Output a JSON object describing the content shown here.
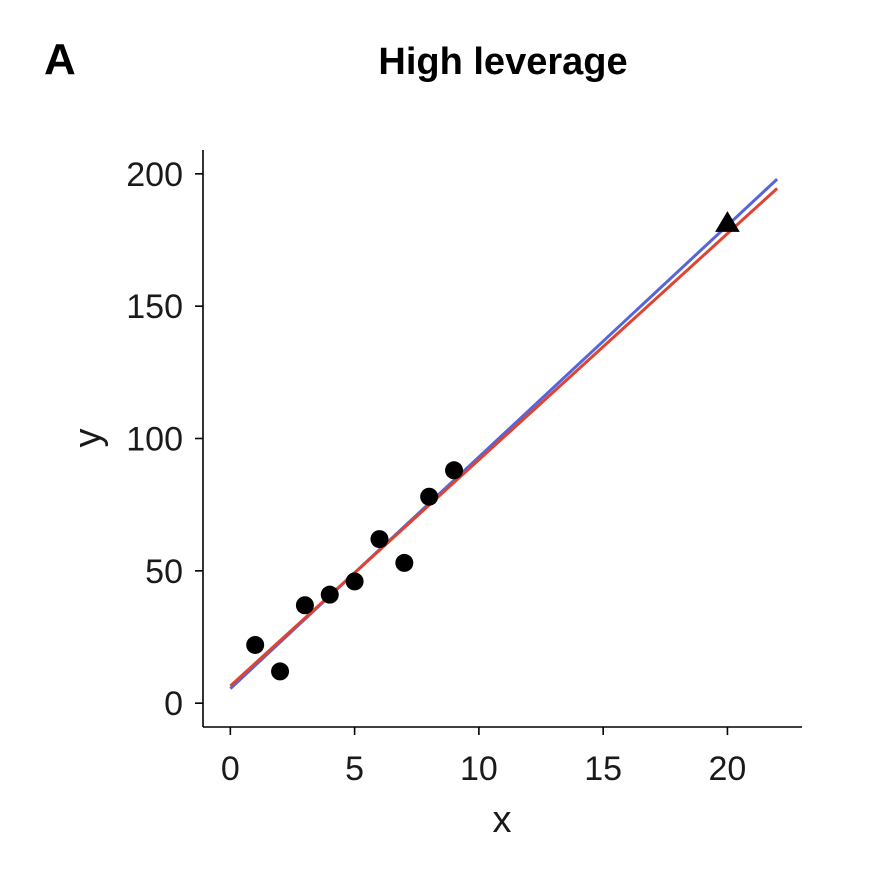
{
  "panel_label": "A",
  "chart_data": {
    "type": "scatter",
    "title": "High leverage",
    "xlabel": "x",
    "ylabel": "y",
    "xlim": [
      -1.1,
      23
    ],
    "ylim": [
      -9,
      209
    ],
    "xticks": [
      0,
      5,
      10,
      15,
      20
    ],
    "yticks": [
      0,
      50,
      100,
      150,
      200
    ],
    "grid": false,
    "legend": "none",
    "series": [
      {
        "marker": "circle",
        "color": "#000000",
        "points": [
          {
            "x": 1,
            "y": 22
          },
          {
            "x": 2,
            "y": 12
          },
          {
            "x": 3,
            "y": 37
          },
          {
            "x": 4,
            "y": 41
          },
          {
            "x": 5,
            "y": 46
          },
          {
            "x": 6,
            "y": 62
          },
          {
            "x": 7,
            "y": 53
          },
          {
            "x": 8,
            "y": 78
          },
          {
            "x": 9,
            "y": 88
          }
        ]
      },
      {
        "marker": "triangle",
        "color": "#000000",
        "points": [
          {
            "x": 20,
            "y": 181
          }
        ]
      }
    ],
    "lines": [
      {
        "color": "#5566dd",
        "from": {
          "x": 0,
          "y": 5.5
        },
        "to": {
          "x": 22,
          "y": 198
        }
      },
      {
        "color": "#dd4433",
        "from": {
          "x": 0,
          "y": 6.5
        },
        "to": {
          "x": 22,
          "y": 194.5
        }
      }
    ]
  }
}
